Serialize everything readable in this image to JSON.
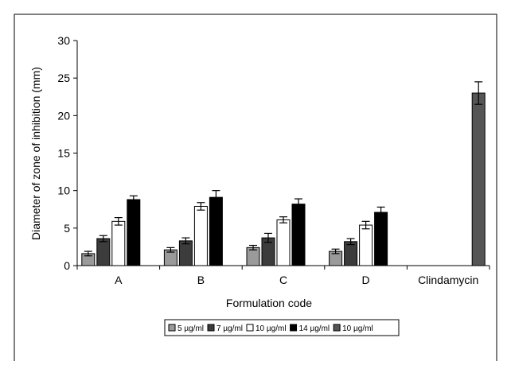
{
  "chart_data": {
    "type": "bar",
    "title": "",
    "xlabel": "Formulation code",
    "ylabel": "Diameter of zone of inhibition (mm)",
    "ylim": [
      0,
      30
    ],
    "yticks": [
      0,
      5,
      10,
      15,
      20,
      25,
      30
    ],
    "grid": false,
    "legend_position": "bottom",
    "categories": [
      "A",
      "B",
      "C",
      "D",
      "Clindamycin"
    ],
    "series": [
      {
        "name": "5 µg/ml",
        "color": "#9a9a9a",
        "values": [
          1.6,
          2.1,
          2.4,
          1.9,
          null
        ],
        "errors": [
          0.3,
          0.3,
          0.3,
          0.3,
          null
        ]
      },
      {
        "name": "7 µg/ml",
        "color": "#3c3c3c",
        "values": [
          3.6,
          3.3,
          3.7,
          3.2,
          null
        ],
        "errors": [
          0.4,
          0.4,
          0.6,
          0.4,
          null
        ]
      },
      {
        "name": "10 µg/ml",
        "color": "#ffffff",
        "values": [
          5.9,
          7.9,
          6.1,
          5.4,
          null
        ],
        "errors": [
          0.5,
          0.5,
          0.4,
          0.5,
          null
        ]
      },
      {
        "name": "14 µg/ml",
        "color": "#000000",
        "values": [
          8.8,
          9.1,
          8.2,
          7.1,
          null
        ],
        "errors": [
          0.5,
          0.9,
          0.7,
          0.7,
          null
        ]
      },
      {
        "name": "10 µg/ml",
        "color": "#555555",
        "values": [
          null,
          null,
          null,
          null,
          23.0
        ],
        "errors": [
          null,
          null,
          null,
          null,
          1.5
        ]
      }
    ]
  }
}
